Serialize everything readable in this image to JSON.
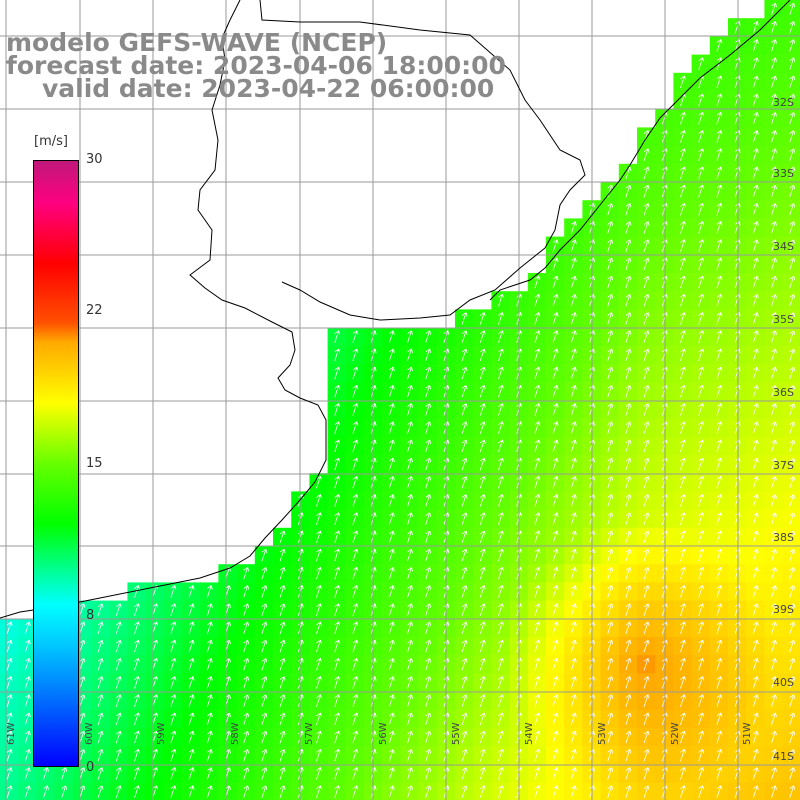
{
  "header": {
    "line1": "modelo GEFS-WAVE (NCEP)",
    "line2": "forecast date: 2023-04-06 18:00:00",
    "line3": "valid date: 2023-04-22 06:00:00"
  },
  "colorbar": {
    "unit": "[m/s]",
    "min": 0,
    "max": 30,
    "labels": [
      "30",
      "22",
      "15",
      "8",
      "0"
    ]
  },
  "lat_labels": [
    "32S",
    "33S",
    "34S",
    "35S",
    "36S",
    "37S",
    "38S",
    "39S",
    "40S",
    "41S"
  ],
  "lon_labels": [
    "61W",
    "60W",
    "59W",
    "58W",
    "57W",
    "56W",
    "55W",
    "54W",
    "53W",
    "52W",
    "51W"
  ],
  "colors": {
    "land": "#ffffff",
    "grid": "#9a9a9a",
    "arrows": "#ffffff",
    "coast": "#000000"
  }
}
